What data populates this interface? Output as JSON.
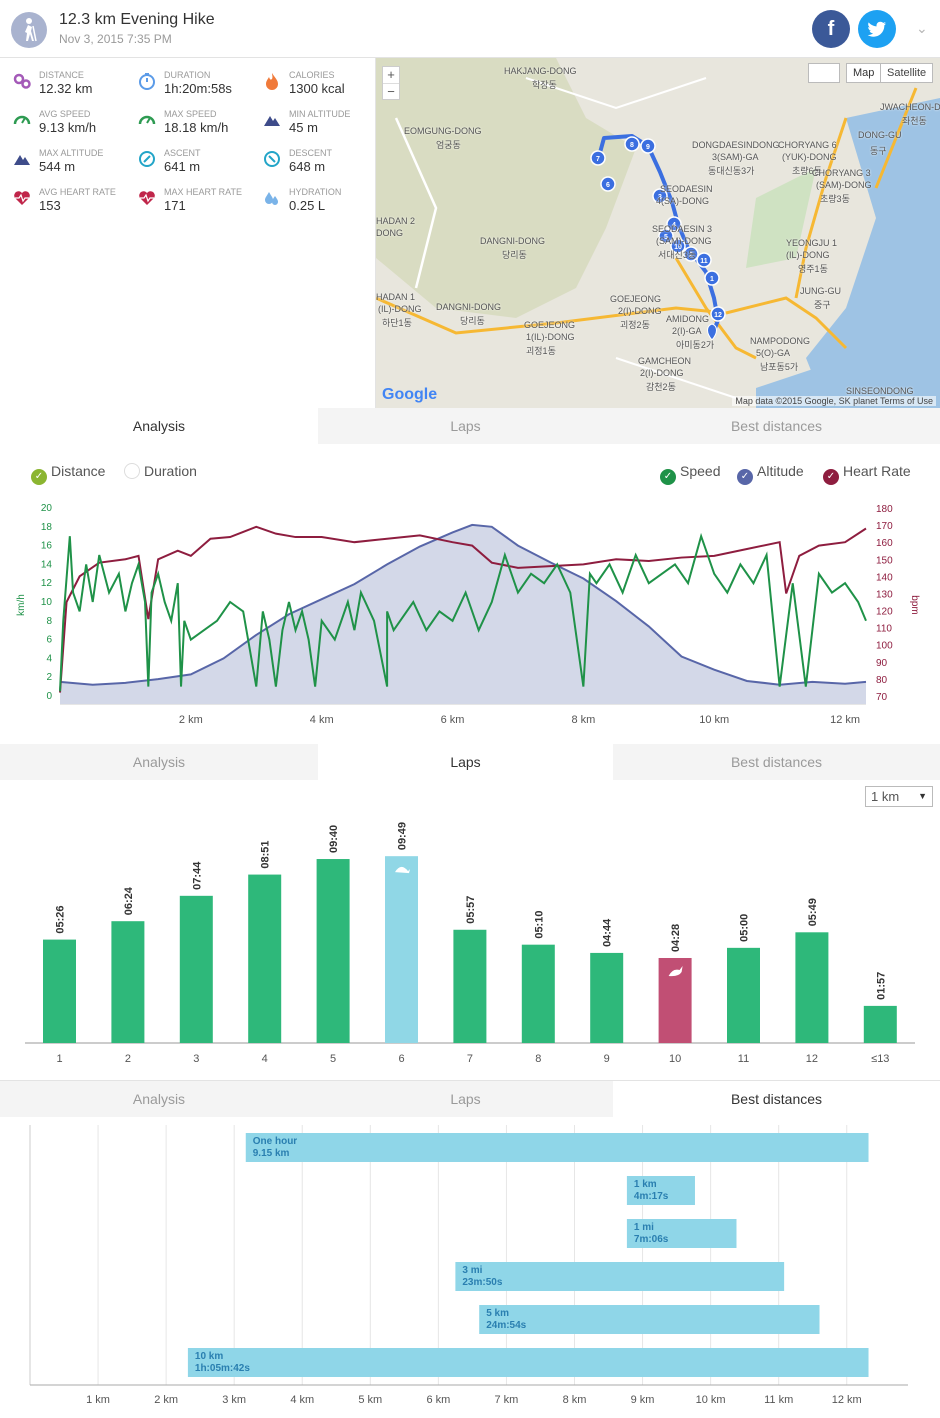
{
  "header": {
    "title": "12.3 km Evening Hike",
    "subtitle": "Nov 3, 2015 7:35 PM",
    "facebook_label": "f",
    "caret": "⌄"
  },
  "stats": [
    {
      "label": "DISTANCE",
      "value": "12.32 km",
      "icon": "distance-icon",
      "color": "#a45ab8"
    },
    {
      "label": "DURATION",
      "value": "1h:20m:58s",
      "icon": "stopwatch-icon",
      "color": "#5b9be8"
    },
    {
      "label": "CALORIES",
      "value": "1300 kcal",
      "icon": "flame-icon",
      "color": "#f07a3a"
    },
    {
      "label": "AVG SPEED",
      "value": "9.13 km/h",
      "icon": "speedometer-icon",
      "color": "#2e9b52"
    },
    {
      "label": "MAX SPEED",
      "value": "18.18 km/h",
      "icon": "speedometer-icon",
      "color": "#2e9b52"
    },
    {
      "label": "MIN ALTITUDE",
      "value": "45 m",
      "icon": "mountain-icon",
      "color": "#3e4c8a"
    },
    {
      "label": "MAX ALTITUDE",
      "value": "544 m",
      "icon": "mountain-icon",
      "color": "#3e4c8a"
    },
    {
      "label": "ASCENT",
      "value": "641 m",
      "icon": "compass-up-icon",
      "color": "#23a5c8"
    },
    {
      "label": "DESCENT",
      "value": "648 m",
      "icon": "compass-down-icon",
      "color": "#23a5c8"
    },
    {
      "label": "AVG HEART RATE",
      "value": "153",
      "icon": "heart-icon",
      "color": "#c0264a"
    },
    {
      "label": "MAX HEART RATE",
      "value": "171",
      "icon": "heart-icon",
      "color": "#c0264a"
    },
    {
      "label": "HYDRATION",
      "value": "0.25 L",
      "icon": "droplets-icon",
      "color": "#7ab3e8"
    }
  ],
  "map": {
    "zoom_in": "+",
    "zoom_out": "−",
    "map_button": "Map",
    "satellite_button": "Satellite",
    "attribution": "Map data ©2015 Google, SK planet  Terms of Use",
    "logo": "Google",
    "labels": [
      "HAKJANG-DONG",
      "학장동",
      "EOMGUNG-DONG",
      "엄궁동",
      "DONGDAESINDONG",
      "3(SAM)-GA",
      "동대신동3가",
      "CHORYANG 6",
      "(YUK)-DONG",
      "초량6동",
      "CHORYANG 3",
      "(SAM)-DONG",
      "초량3동",
      "JWACHEON-DONG",
      "좌천동",
      "DONG-GU",
      "동구",
      "SEODAESIN",
      "4(SA)-DONG",
      "SEODAESIN 3",
      "(SAM)-DONG",
      "서대신3동",
      "DANGNI-DONG",
      "당리동",
      "YEONGJU 1",
      "(IL)-DONG",
      "영주1동",
      "JUNG-GU",
      "중구",
      "HADAN 1",
      "(IL)-DONG",
      "하단1동",
      "DANGNI-DONG",
      "당리동",
      "GOEJEONG",
      "2(I)-DONG",
      "괴정2동",
      "GOEJEONG",
      "1(IL)-DONG",
      "괴정1동",
      "AMIDONG",
      "2(I)-GA",
      "아미동2가",
      "NAMPODONG",
      "5(O)-GA",
      "남포동5가",
      "GAMCHEON",
      "2(I)-DONG",
      "감천2동",
      "SINSEONDONG",
      "HADAN 2",
      "DONG"
    ],
    "route_markers": [
      "1",
      "2",
      "3",
      "4",
      "5",
      "6",
      "7",
      "8",
      "9",
      "10",
      "11",
      "12"
    ]
  },
  "tabs": {
    "analysis": "Analysis",
    "laps": "Laps",
    "best": "Best distances"
  },
  "analysis": {
    "legend": {
      "distance": "Distance",
      "duration": "Duration",
      "speed": "Speed",
      "altitude": "Altitude",
      "heart_rate": "Heart Rate"
    },
    "colors": {
      "speed": "#1f9248",
      "altitude": "#5866a8",
      "altitude_fill": "#d3d8e8",
      "heart_rate": "#8e1d3f",
      "check_distance": "#8bb531"
    }
  },
  "laps": {
    "select_value": "1 km",
    "select_arrow": "▼",
    "colors": {
      "normal": "#2eb87a",
      "slowest": "#90d7e6",
      "fastest": "#c14f74"
    }
  },
  "chart_data": [
    {
      "type": "line",
      "xlabel": "",
      "ylabel_left": "km/h",
      "ylabel_right": "bpm",
      "xlim": [
        0,
        12.32
      ],
      "ylim_left": [
        0,
        20
      ],
      "ylim_right": [
        70,
        180
      ],
      "x_ticks": [
        "2 km",
        "4 km",
        "6 km",
        "8 km",
        "10 km",
        "12 km"
      ],
      "y_ticks_left": [
        "0",
        "2",
        "4",
        "6",
        "8",
        "10",
        "12",
        "14",
        "16",
        "18",
        "20"
      ],
      "y_ticks_right": [
        "70",
        "80",
        "90",
        "100",
        "110",
        "120",
        "130",
        "140",
        "150",
        "160",
        "170",
        "180"
      ],
      "series": [
        {
          "name": "Speed",
          "axis": "left",
          "x": [
            0,
            0.05,
            0.15,
            0.2,
            0.3,
            0.4,
            0.5,
            0.6,
            0.75,
            0.9,
            1.0,
            1.1,
            1.2,
            1.3,
            1.35,
            1.4,
            1.5,
            1.6,
            1.7,
            1.8,
            1.85,
            1.9,
            2.0,
            2.2,
            2.4,
            2.6,
            2.8,
            3.0,
            3.1,
            3.2,
            3.3,
            3.4,
            3.5,
            3.6,
            3.7,
            3.8,
            3.9,
            4.0,
            4.2,
            4.4,
            4.5,
            4.6,
            4.8,
            5.0,
            5.0,
            5.1,
            5.2,
            5.4,
            5.6,
            5.8,
            6.0,
            6.2,
            6.4,
            6.6,
            6.8,
            7.0,
            7.2,
            7.4,
            7.6,
            7.8,
            8.0,
            8.1,
            8.2,
            8.4,
            8.6,
            8.8,
            9.0,
            9.2,
            9.4,
            9.6,
            9.8,
            10.0,
            10.2,
            10.4,
            10.6,
            10.8,
            11.0,
            11.2,
            11.4,
            11.6,
            11.8,
            12.0,
            12.2,
            12.32
          ],
          "values": [
            0.5,
            8,
            17,
            11,
            9,
            14,
            10,
            15,
            11,
            13,
            9,
            12,
            14,
            10,
            1,
            11,
            13,
            10,
            8,
            12,
            1,
            8,
            6,
            7,
            8,
            10,
            9,
            1,
            9,
            6,
            1,
            7,
            10,
            7,
            9,
            6,
            1,
            8,
            6,
            10,
            7,
            11,
            8,
            1,
            9,
            7,
            8,
            10,
            7,
            9,
            8,
            11,
            7,
            10,
            15,
            11,
            13,
            12,
            14,
            11,
            1,
            13,
            12,
            14,
            11,
            15,
            12,
            13,
            14,
            12,
            17,
            13,
            11,
            14,
            12,
            15,
            1,
            12,
            1,
            13,
            11,
            12,
            10,
            8
          ]
        },
        {
          "name": "Altitude",
          "axis": "left",
          "x": [
            0,
            0.5,
            1.0,
            1.5,
            2.0,
            2.5,
            3.0,
            3.5,
            4.0,
            4.5,
            5.0,
            5.5,
            6.0,
            6.3,
            6.6,
            7.0,
            7.5,
            8.0,
            8.5,
            9.0,
            9.5,
            10.0,
            10.5,
            11.0,
            11.5,
            12.0,
            12.32
          ],
          "values": [
            1.5,
            1.2,
            1.4,
            1.8,
            2.3,
            4.0,
            6.5,
            8.7,
            10.3,
            11.9,
            14.0,
            15.9,
            17.4,
            18.2,
            18.0,
            16.0,
            14.2,
            12.5,
            10.1,
            7.4,
            4.2,
            2.8,
            1.6,
            1.2,
            1.5,
            1.3,
            1.5
          ]
        },
        {
          "name": "Heart Rate",
          "axis": "right",
          "x": [
            0,
            0.1,
            0.3,
            0.6,
            1.0,
            1.2,
            1.35,
            1.5,
            1.8,
            2.0,
            2.3,
            2.6,
            2.8,
            3.0,
            3.3,
            3.6,
            4.0,
            4.5,
            5.0,
            5.5,
            6.0,
            6.3,
            6.6,
            7.0,
            7.5,
            8.0,
            8.5,
            9.0,
            9.5,
            10.0,
            10.5,
            11.0,
            11.1,
            11.3,
            11.6,
            12.0,
            12.32
          ],
          "values": [
            72,
            125,
            140,
            148,
            150,
            152,
            115,
            150,
            155,
            152,
            162,
            163,
            166,
            169,
            165,
            163,
            163,
            160,
            162,
            164,
            160,
            158,
            148,
            145,
            146,
            147,
            150,
            149,
            151,
            152,
            156,
            160,
            130,
            152,
            158,
            160,
            168
          ]
        }
      ]
    },
    {
      "type": "bar",
      "categories": [
        "1",
        "2",
        "3",
        "4",
        "5",
        "6",
        "7",
        "8",
        "9",
        "10",
        "11",
        "12",
        "≤13"
      ],
      "values": [
        326,
        384,
        464,
        531,
        580,
        589,
        357,
        310,
        284,
        268,
        300,
        349,
        117
      ],
      "labels": [
        "05:26",
        "06:24",
        "07:44",
        "08:51",
        "09:40",
        "09:49",
        "05:57",
        "05:10",
        "04:44",
        "04:28",
        "05:00",
        "05:49",
        "01:57"
      ],
      "markers": {
        "slowest": "6",
        "fastest": "10"
      },
      "ylim": [
        0,
        640
      ]
    },
    {
      "type": "bar",
      "orientation": "horizontal",
      "x_ticks": [
        "1 km",
        "2 km",
        "3 km",
        "4 km",
        "5 km",
        "6 km",
        "7 km",
        "8 km",
        "9 km",
        "10 km",
        "11 km",
        "12 km"
      ],
      "xlim": [
        0,
        12.9
      ],
      "bars": [
        {
          "name": "One hour",
          "value": "9.15 km",
          "start": 3.17,
          "end": 12.32
        },
        {
          "name": "1 km",
          "value": "4m:17s",
          "start": 8.77,
          "end": 9.77
        },
        {
          "name": "1 mi",
          "value": "7m:06s",
          "start": 8.77,
          "end": 10.38
        },
        {
          "name": "3 mi",
          "value": "23m:50s",
          "start": 6.25,
          "end": 11.08
        },
        {
          "name": "5 km",
          "value": "24m:54s",
          "start": 6.6,
          "end": 11.6
        },
        {
          "name": "10 km",
          "value": "1h:05m:42s",
          "start": 2.32,
          "end": 12.32
        }
      ]
    }
  ]
}
